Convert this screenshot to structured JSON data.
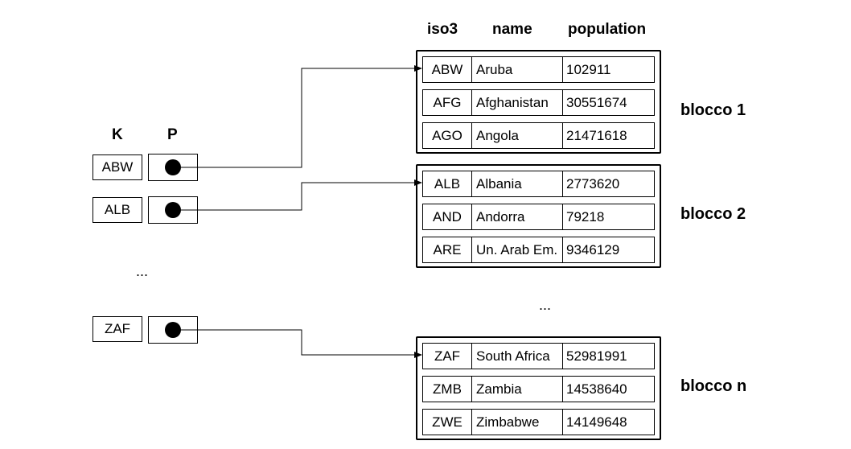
{
  "headers": {
    "iso3": "iso3",
    "name": "name",
    "population": "population",
    "key": "K",
    "pointer": "P"
  },
  "index_entries": [
    {
      "key": "ABW"
    },
    {
      "key": "ALB"
    },
    {
      "key": "ZAF"
    }
  ],
  "ellipsis": {
    "index": "...",
    "blocks": "..."
  },
  "blocks": [
    {
      "label": "blocco 1",
      "records": [
        {
          "iso3": "ABW",
          "name": "Aruba",
          "population": "102911"
        },
        {
          "iso3": "AFG",
          "name": "Afghanistan",
          "population": "30551674"
        },
        {
          "iso3": "AGO",
          "name": "Angola",
          "population": "21471618"
        }
      ]
    },
    {
      "label": "blocco 2",
      "records": [
        {
          "iso3": "ALB",
          "name": "Albania",
          "population": "2773620"
        },
        {
          "iso3": "AND",
          "name": "Andorra",
          "population": "79218"
        },
        {
          "iso3": "ARE",
          "name": "Un. Arab Em.",
          "population": "9346129"
        }
      ]
    },
    {
      "label": "blocco n",
      "records": [
        {
          "iso3": "ZAF",
          "name": "South Africa",
          "population": "52981991"
        },
        {
          "iso3": "ZMB",
          "name": "Zambia",
          "population": "14538640"
        },
        {
          "iso3": "ZWE",
          "name": "Zimbabwe",
          "population": "14149648"
        }
      ]
    }
  ]
}
